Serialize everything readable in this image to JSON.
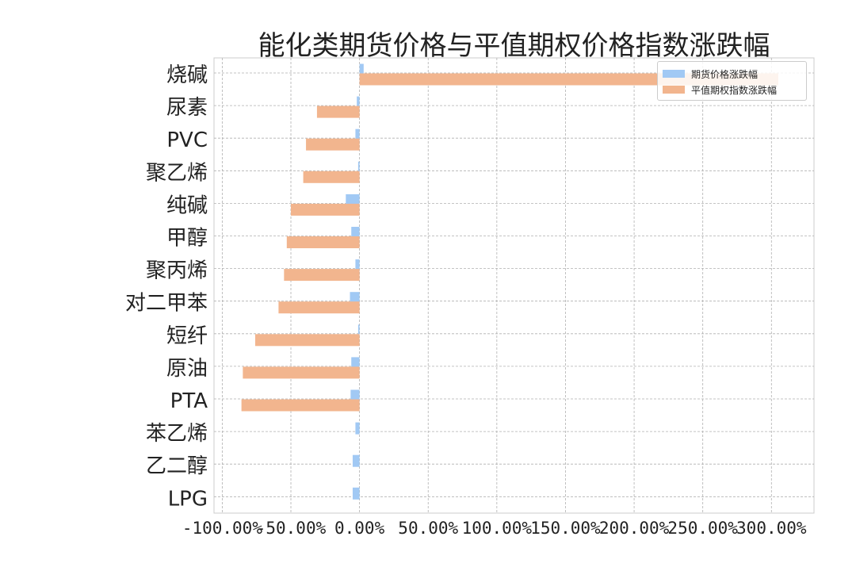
{
  "chart_data": {
    "type": "bar",
    "orientation": "horizontal",
    "title": "能化类期货价格与平值期权价格指数涨跌幅",
    "categories": [
      "烧碱",
      "尿素",
      "PVC",
      "聚乙烯",
      "纯碱",
      "甲醇",
      "聚丙烯",
      "对二甲苯",
      "短纤",
      "原油",
      "PTA",
      "苯乙烯",
      "乙二醇",
      "LPG"
    ],
    "series": [
      {
        "name": "期货价格涨跌幅",
        "color": "#a1c9f4",
        "values": [
          0.03,
          -0.02,
          -0.03,
          -0.01,
          -0.1,
          -0.06,
          -0.03,
          -0.07,
          -0.01,
          -0.06,
          -0.065,
          -0.03,
          -0.05,
          -0.05
        ]
      },
      {
        "name": "平值期权指数涨跌幅",
        "color": "#f2b58e",
        "values": [
          3.05,
          -0.31,
          -0.39,
          -0.41,
          -0.5,
          -0.53,
          -0.55,
          -0.59,
          -0.76,
          -0.85,
          -0.86,
          null,
          null,
          null
        ]
      }
    ],
    "xlim": [
      -1.06,
      3.31
    ],
    "xticks": [
      -1.0,
      -0.5,
      0.0,
      0.5,
      1.0,
      1.5,
      2.0,
      2.5,
      3.0
    ],
    "xtick_labels": [
      "-100.00%",
      "-50.00%",
      "0.00%",
      "50.00%",
      "100.00%",
      "150.00%",
      "200.00%",
      "250.00%",
      "300.00%"
    ],
    "grid": true,
    "legend_position": "top-right",
    "xlabel": "",
    "ylabel": ""
  }
}
